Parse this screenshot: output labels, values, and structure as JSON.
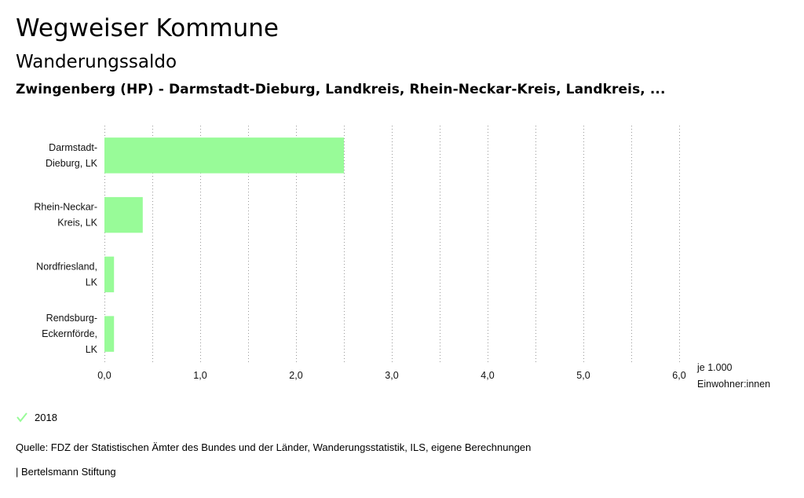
{
  "header": {
    "title": "Wegweiser Kommune",
    "subtitle": "Wanderungssaldo",
    "region": "Zwingenberg (HP) - Darmstadt-Dieburg, Landkreis, Rhein-Neckar-Kreis, Landkreis, ..."
  },
  "chart_data": {
    "type": "bar",
    "orientation": "horizontal",
    "categories": [
      [
        "Darmstadt-",
        "Dieburg, LK"
      ],
      [
        "Rhein-Neckar-",
        "Kreis, LK"
      ],
      [
        "Nordfriesland,",
        "LK"
      ],
      [
        "Rendsburg-",
        "Eckernförde,",
        "LK"
      ]
    ],
    "series": [
      {
        "name": "2018",
        "values": [
          2.5,
          0.4,
          0.1,
          0.1
        ]
      }
    ],
    "xlim": [
      0,
      6
    ],
    "xticks": [
      "0,0",
      "1,0",
      "2,0",
      "3,0",
      "4,0",
      "5,0",
      "6,0"
    ],
    "xlabel": [
      "je 1.000",
      "Einwohner:innen"
    ],
    "grid": "vertical dotted",
    "colors": {
      "bar": "#98fb98",
      "grid": "#999999"
    }
  },
  "legend": {
    "label": "2018",
    "color": "#98fb98"
  },
  "footer": {
    "source": "Quelle: FDZ der Statistischen Ämter des Bundes und der Länder, Wanderungsstatistik, ILS, eigene Berechnungen",
    "credit": "| Bertelsmann Stiftung"
  }
}
